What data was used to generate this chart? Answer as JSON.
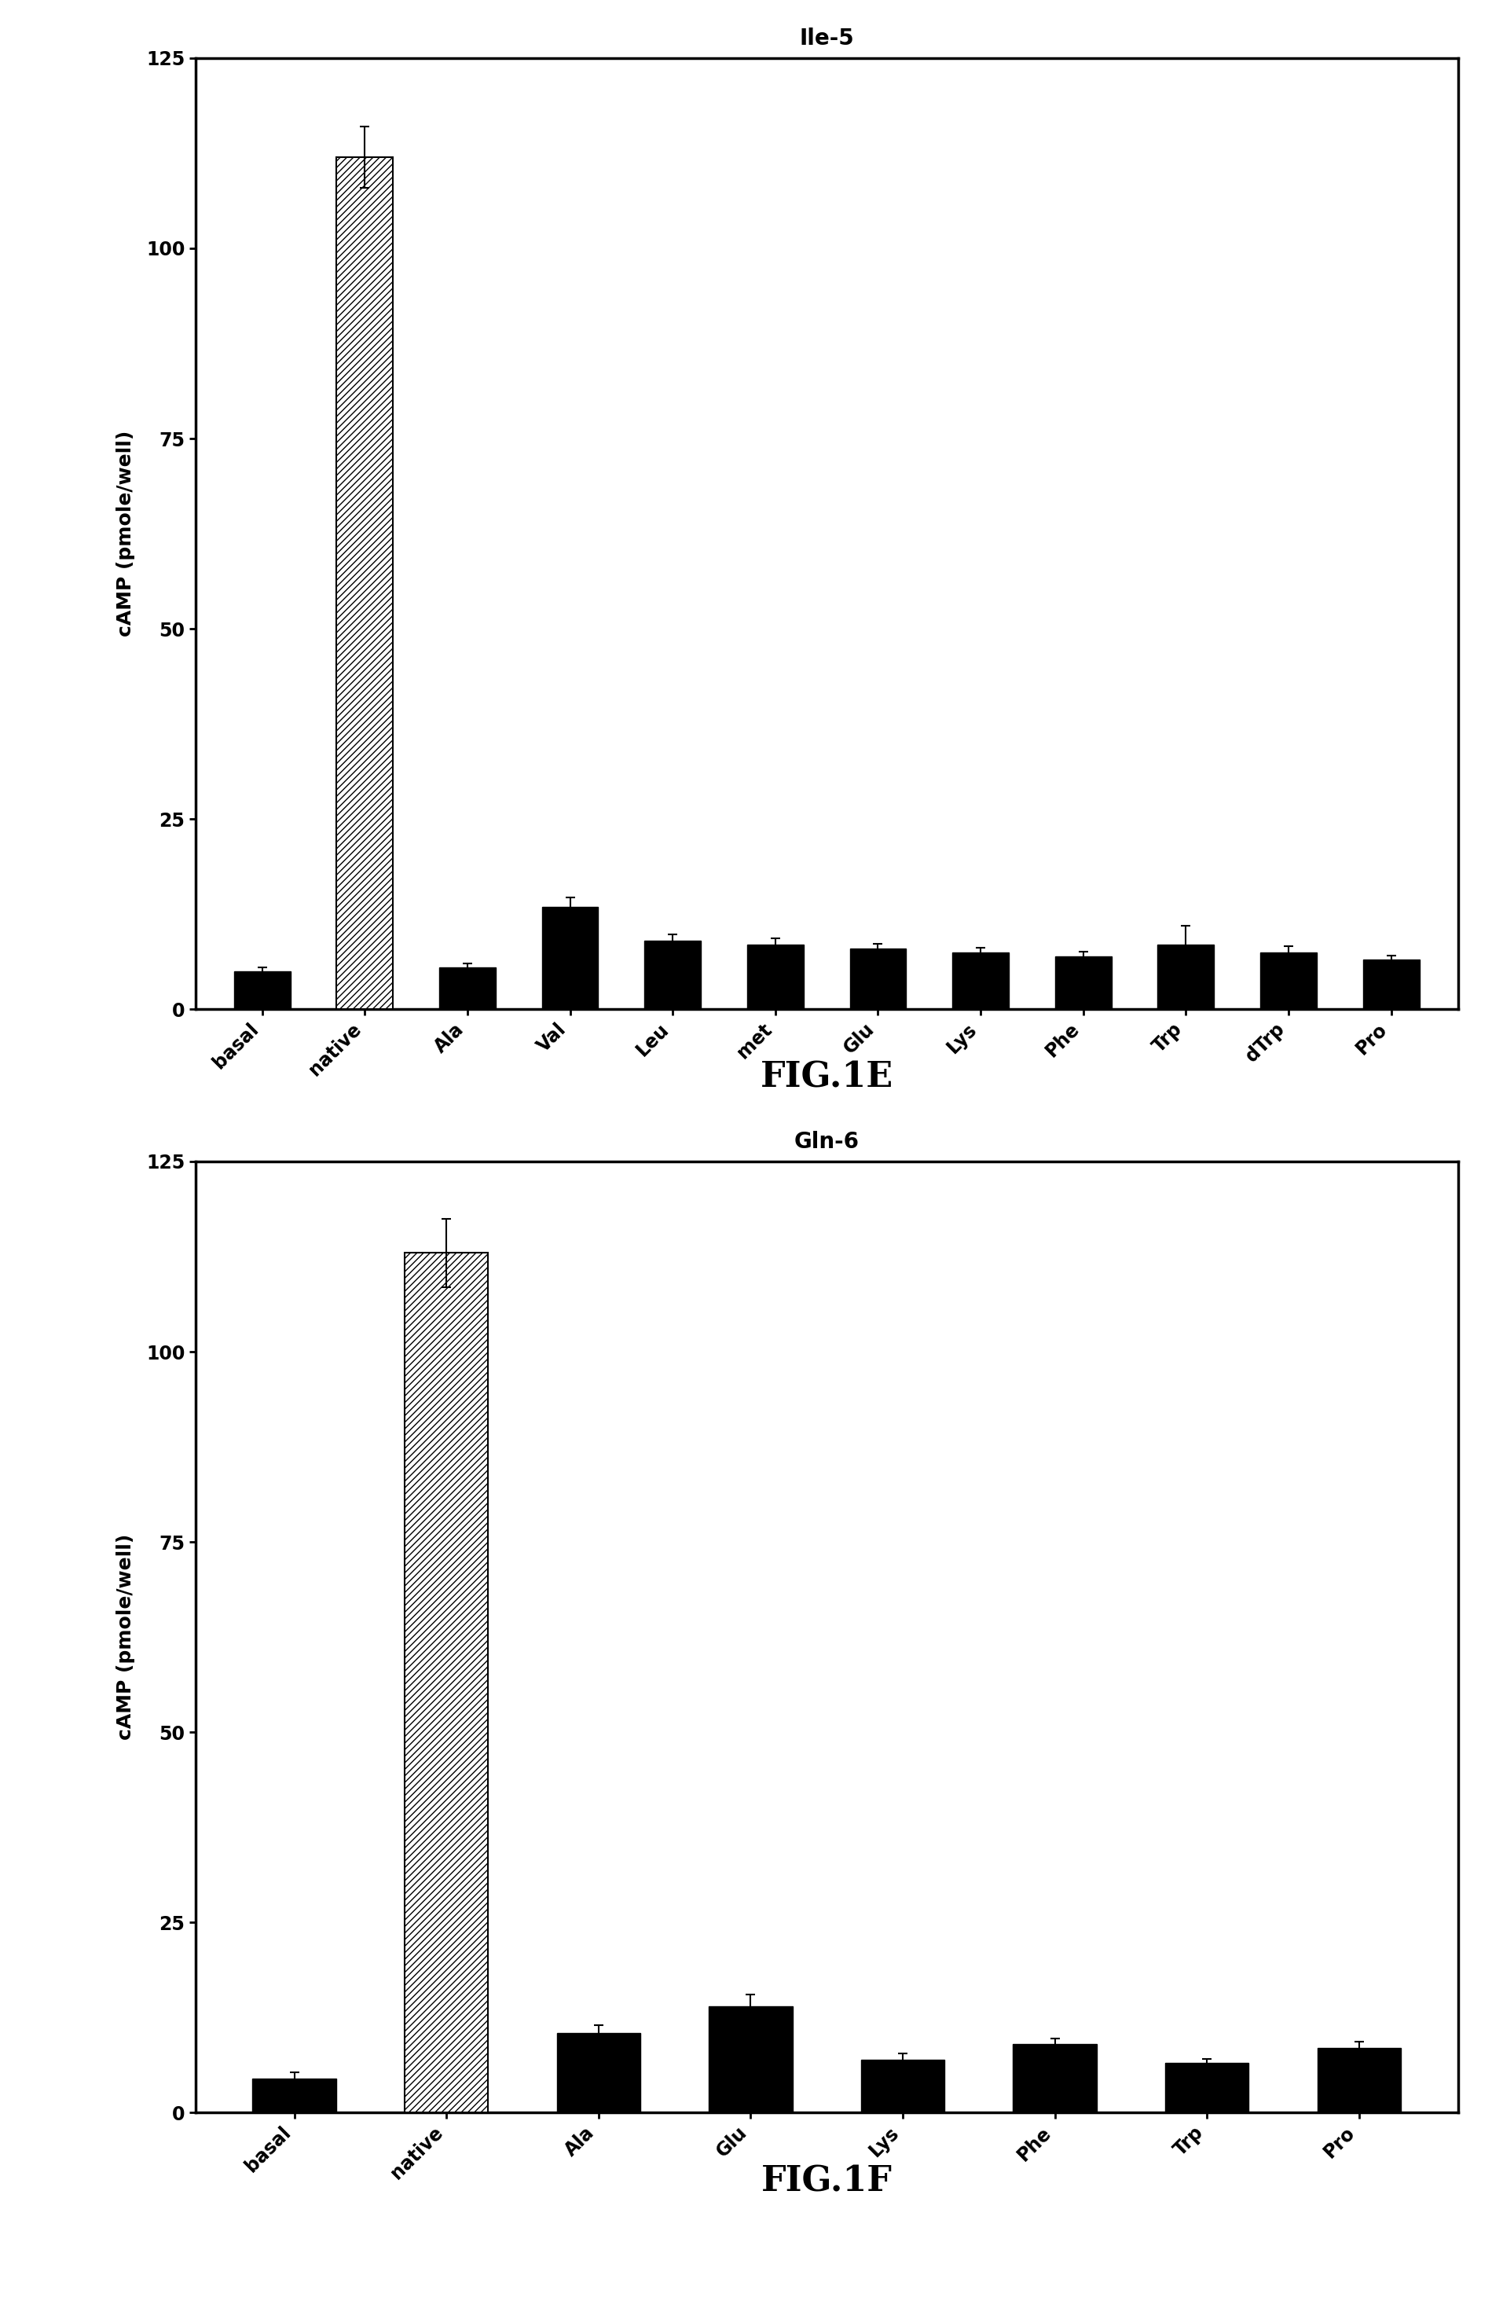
{
  "fig1e": {
    "title": "Ile-5",
    "categories": [
      "basal",
      "native",
      "Ala",
      "Val",
      "Leu",
      "met",
      "Glu",
      "Lys",
      "Phe",
      "Trp",
      "dTrp",
      "Pro"
    ],
    "values": [
      5.0,
      112.0,
      5.5,
      13.5,
      9.0,
      8.5,
      8.0,
      7.5,
      7.0,
      8.5,
      7.5,
      6.5
    ],
    "errors": [
      0.5,
      4.0,
      0.5,
      1.2,
      0.8,
      0.8,
      0.6,
      0.6,
      0.6,
      2.5,
      0.8,
      0.6
    ],
    "native_index": 1,
    "ylim": [
      0,
      125
    ],
    "yticks": [
      0,
      25,
      50,
      75,
      100,
      125
    ],
    "ylabel": "cAMP (pmole/well)",
    "fig_label": "FIG.1E"
  },
  "fig1f": {
    "title": "Gln-6",
    "categories": [
      "basal",
      "native",
      "Ala",
      "Glu",
      "Lys",
      "Phe",
      "Trp",
      "Pro"
    ],
    "values": [
      4.5,
      113.0,
      10.5,
      14.0,
      7.0,
      9.0,
      6.5,
      8.5
    ],
    "errors": [
      0.8,
      4.5,
      1.0,
      1.5,
      0.8,
      0.8,
      0.6,
      0.8
    ],
    "native_index": 1,
    "ylim": [
      0,
      125
    ],
    "yticks": [
      0,
      25,
      50,
      75,
      100,
      125
    ],
    "ylabel": "cAMP (pmole/well)",
    "fig_label": "FIG.1F"
  },
  "bar_width": 0.55,
  "solid_color": "#000000",
  "hatch_pattern": "////",
  "background_color": "#ffffff",
  "title_fontsize": 20,
  "label_fontsize": 18,
  "tick_fontsize": 17,
  "fig_label_fontsize": 32
}
